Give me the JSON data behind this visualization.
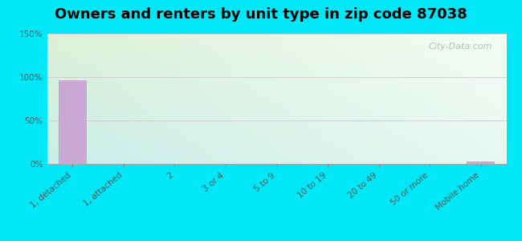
{
  "title": "Owners and renters by unit type in zip code 87038",
  "categories": [
    "1, detached",
    "1, attached",
    "2",
    "3 or 4",
    "5 to 9",
    "10 to 19",
    "20 to 49",
    "50 or more",
    "Mobile home"
  ],
  "values": [
    96,
    0,
    0,
    0,
    0,
    0,
    0,
    0,
    3
  ],
  "bar_color": "#c9a8d4",
  "ylim": [
    0,
    150
  ],
  "yticks": [
    0,
    50,
    100,
    150
  ],
  "ytick_labels": [
    "0%",
    "50%",
    "100%",
    "150%"
  ],
  "background_outer": "#00e8f8",
  "bg_top_left": "#dff0d8",
  "bg_top_right": "#f0f8f0",
  "bg_bottom_left": "#c8eee8",
  "bg_bottom_right": "#e8f8f0",
  "watermark": "City-Data.com",
  "title_fontsize": 13,
  "tick_fontsize": 7.5,
  "grid_color": "#cccccc"
}
